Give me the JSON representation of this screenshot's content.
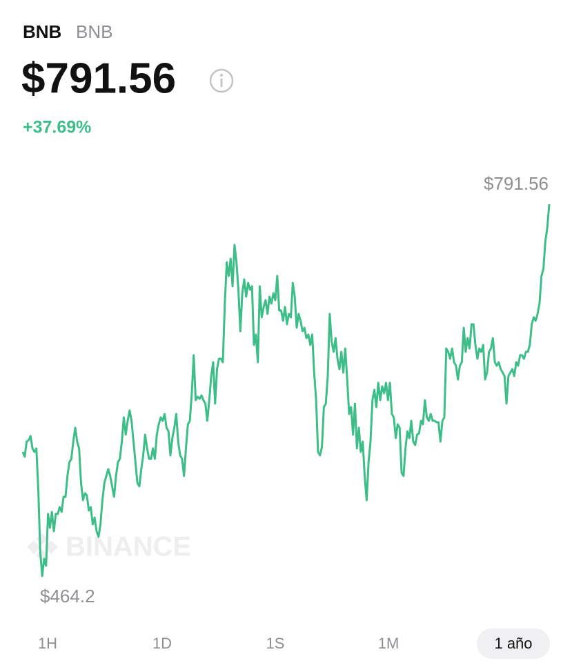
{
  "header": {
    "symbol": "BNB",
    "name": "BNB",
    "price": "$791.56",
    "change": "+37.69%"
  },
  "chart_data": {
    "type": "line",
    "color": "#3dbd88",
    "ylim": [
      464.2,
      791.56
    ],
    "max_label": "$791.56",
    "min_label": "$464.2",
    "watermark": "BINANCE",
    "values": [
      573.5,
      569.3,
      582.6,
      583.8,
      587.5,
      576.6,
      573.5,
      576.6,
      540.1,
      485.5,
      464.2,
      479.4,
      473.3,
      518.9,
      506.7,
      520.7,
      503.7,
      518.9,
      518.9,
      524.9,
      520.7,
      534.0,
      534.0,
      552.3,
      564.4,
      567.4,
      582.6,
      594.8,
      582.6,
      576.6,
      546.2,
      531.0,
      537.1,
      535.3,
      521.9,
      524.9,
      509.8,
      515.8,
      503.7,
      498.8,
      509.8,
      531.0,
      546.2,
      552.3,
      558.3,
      552.3,
      543.2,
      534.0,
      552.3,
      564.4,
      567.4,
      582.6,
      603.9,
      588.7,
      600.9,
      610.0,
      600.9,
      582.6,
      564.4,
      546.2,
      543.2,
      558.3,
      570.5,
      588.7,
      576.6,
      567.4,
      567.4,
      576.6,
      567.4,
      588.7,
      597.8,
      603.9,
      600.9,
      606.9,
      594.8,
      591.7,
      570.5,
      585.7,
      594.8,
      606.9,
      582.6,
      570.5,
      567.4,
      552.3,
      576.6,
      597.8,
      600.9,
      625.1,
      658.6,
      619.1,
      622.1,
      620.3,
      623.3,
      619.1,
      616.0,
      600.9,
      619.1,
      640.3,
      652.5,
      616.0,
      646.4,
      655.5,
      655.5,
      652.5,
      704.1,
      740.5,
      728.4,
      743.6,
      719.3,
      755.7,
      740.5,
      716.3,
      679.8,
      713.2,
      725.4,
      710.2,
      722.3,
      716.3,
      719.3,
      667.7,
      676.8,
      652.5,
      719.3,
      692.0,
      701.1,
      707.1,
      695.0,
      710.2,
      704.1,
      713.2,
      707.1,
      728.4,
      698.0,
      698.0,
      688.9,
      701.1,
      685.9,
      695.0,
      692.0,
      722.3,
      710.2,
      682.8,
      695.0,
      688.9,
      679.8,
      682.8,
      673.7,
      676.8,
      667.7,
      676.8,
      643.4,
      619.1,
      573.5,
      570.5,
      577.8,
      613.0,
      616.0,
      640.3,
      695.0,
      670.7,
      661.6,
      673.7,
      655.5,
      646.4,
      661.6,
      643.4,
      664.6,
      637.3,
      606.9,
      613.0,
      588.7,
      616.0,
      576.6,
      594.8,
      573.5,
      582.6,
      552.3,
      531.0,
      564.4,
      582.6,
      619.1,
      628.2,
      613.0,
      634.3,
      619.1,
      631.2,
      625.1,
      634.3,
      619.1,
      634.3,
      606.9,
      603.9,
      585.7,
      597.8,
      594.8,
      555.3,
      552.3,
      576.6,
      591.7,
      585.7,
      600.9,
      582.6,
      579.6,
      588.7,
      589.9,
      600.9,
      597.8,
      619.1,
      603.9,
      600.9,
      606.9,
      600.9,
      600.9,
      599.6,
      599.6,
      582.6,
      600.9,
      603.9,
      664.6,
      661.6,
      655.5,
      664.6,
      652.5,
      649.4,
      637.3,
      649.4,
      652.5,
      682.8,
      661.6,
      673.7,
      664.6,
      685.9,
      685.9,
      667.7,
      655.5,
      664.6,
      661.6,
      667.7,
      637.3,
      643.4,
      661.6,
      664.6,
      673.7,
      652.5,
      649.4,
      652.5,
      646.4,
      643.4,
      640.3,
      616.0,
      640.3,
      643.4,
      646.4,
      640.3,
      652.5,
      649.4,
      658.6,
      658.6,
      655.5,
      661.6,
      661.6,
      667.7,
      685.9,
      692.0,
      688.9,
      695.0,
      704.1,
      728.4,
      734.5,
      758.8,
      770.9,
      791.56
    ]
  },
  "tabs": [
    "1H",
    "1D",
    "1S",
    "1M",
    "1 año"
  ],
  "selected_tab": 4
}
